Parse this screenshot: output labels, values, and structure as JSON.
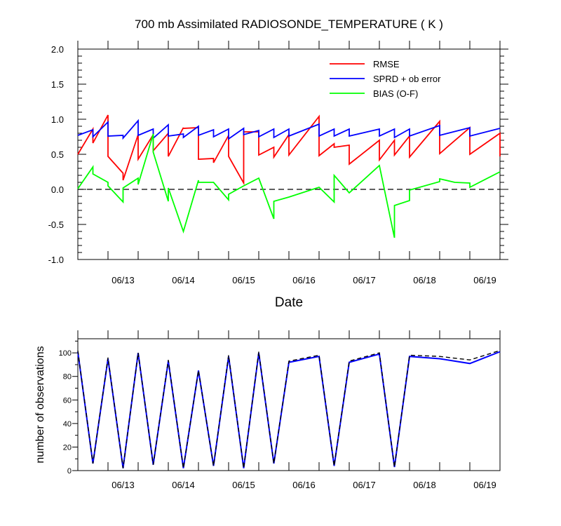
{
  "chart_data": [
    {
      "type": "line",
      "title": "700 mb Assimilated RADIOSONDE_TEMPERATURE ( K )",
      "xlabel": "Date",
      "ylabel": "",
      "ylim": [
        -1.0,
        2.0
      ],
      "yticks": [
        "-1.0",
        "-0.5",
        "0.0",
        "0.5",
        "1.0",
        "1.5",
        "2.0"
      ],
      "x_tick_labels": [
        "06/13",
        "06/14",
        "06/15",
        "06/16",
        "06/17",
        "06/18",
        "06/19"
      ],
      "zero_line": "dashed",
      "legend_position": "top-right",
      "series": [
        {
          "name": "RMSE",
          "color": "#ff0000",
          "points": [
            [
              0.0,
              0.5
            ],
            [
              0.5,
              0.86
            ],
            [
              0.5,
              0.66
            ],
            [
              1.0,
              1.06
            ],
            [
              1.0,
              0.47
            ],
            [
              1.5,
              0.23
            ],
            [
              1.5,
              0.13
            ],
            [
              2.0,
              0.78
            ],
            [
              2.0,
              0.43
            ],
            [
              2.5,
              0.78
            ],
            [
              2.5,
              0.55
            ],
            [
              3.0,
              0.8
            ],
            [
              3.0,
              0.47
            ],
            [
              3.5,
              0.88
            ],
            [
              3.5,
              0.87
            ],
            [
              4.0,
              0.88
            ],
            [
              4.0,
              0.43
            ],
            [
              4.5,
              0.44
            ],
            [
              4.5,
              0.38
            ],
            [
              5.0,
              0.77
            ],
            [
              5.0,
              0.47
            ],
            [
              5.5,
              0.09
            ],
            [
              5.5,
              0.82
            ],
            [
              6.0,
              0.82
            ],
            [
              6.0,
              0.49
            ],
            [
              6.5,
              0.6
            ],
            [
              6.5,
              0.46
            ],
            [
              7.0,
              0.78
            ],
            [
              7.0,
              0.49
            ],
            [
              8.0,
              1.04
            ],
            [
              8.0,
              0.48
            ],
            [
              8.5,
              0.65
            ],
            [
              8.5,
              0.6
            ],
            [
              9.0,
              0.63
            ],
            [
              9.0,
              0.36
            ],
            [
              10.0,
              0.7
            ],
            [
              10.0,
              0.42
            ],
            [
              10.5,
              0.7
            ],
            [
              10.5,
              0.49
            ],
            [
              11.0,
              0.76
            ],
            [
              11.0,
              0.46
            ],
            [
              12.0,
              0.97
            ],
            [
              12.0,
              0.51
            ],
            [
              13.0,
              0.88
            ],
            [
              13.0,
              0.5
            ],
            [
              14.0,
              0.8
            ],
            [
              14.0,
              0.47
            ]
          ]
        },
        {
          "name": "SPRD + ob error",
          "color": "#0000ff",
          "points": [
            [
              0.0,
              0.77
            ],
            [
              0.5,
              0.85
            ],
            [
              0.5,
              0.75
            ],
            [
              1.0,
              0.96
            ],
            [
              1.0,
              0.76
            ],
            [
              1.5,
              0.77
            ],
            [
              1.5,
              0.73
            ],
            [
              2.0,
              0.98
            ],
            [
              2.0,
              0.77
            ],
            [
              2.5,
              0.86
            ],
            [
              2.5,
              0.73
            ],
            [
              3.0,
              0.92
            ],
            [
              3.0,
              0.76
            ],
            [
              3.5,
              0.79
            ],
            [
              3.5,
              0.74
            ],
            [
              4.0,
              0.9
            ],
            [
              4.0,
              0.77
            ],
            [
              4.5,
              0.85
            ],
            [
              4.5,
              0.75
            ],
            [
              5.0,
              0.86
            ],
            [
              5.0,
              0.72
            ],
            [
              5.5,
              0.87
            ],
            [
              5.5,
              0.78
            ],
            [
              6.0,
              0.84
            ],
            [
              6.0,
              0.75
            ],
            [
              6.5,
              0.86
            ],
            [
              6.5,
              0.74
            ],
            [
              7.0,
              0.86
            ],
            [
              7.0,
              0.76
            ],
            [
              8.0,
              0.93
            ],
            [
              8.0,
              0.76
            ],
            [
              8.5,
              0.86
            ],
            [
              8.5,
              0.76
            ],
            [
              9.0,
              0.86
            ],
            [
              9.0,
              0.76
            ],
            [
              10.0,
              0.86
            ],
            [
              10.0,
              0.76
            ],
            [
              10.5,
              0.86
            ],
            [
              10.5,
              0.74
            ],
            [
              11.0,
              0.86
            ],
            [
              11.0,
              0.76
            ],
            [
              12.0,
              0.91
            ],
            [
              12.0,
              0.77
            ],
            [
              13.0,
              0.88
            ],
            [
              13.0,
              0.76
            ],
            [
              14.0,
              0.87
            ]
          ]
        },
        {
          "name": "BIAS (O-F)",
          "color": "#00ff00",
          "points": [
            [
              0.0,
              0.01
            ],
            [
              0.5,
              0.32
            ],
            [
              0.5,
              0.22
            ],
            [
              1.0,
              0.1
            ],
            [
              1.0,
              0.05
            ],
            [
              1.5,
              -0.18
            ],
            [
              1.5,
              0.02
            ],
            [
              2.0,
              0.16
            ],
            [
              2.0,
              0.07
            ],
            [
              2.5,
              0.79
            ],
            [
              2.5,
              0.53
            ],
            [
              3.0,
              -0.17
            ],
            [
              3.0,
              0.02
            ],
            [
              3.5,
              -0.6
            ],
            [
              4.0,
              0.13
            ],
            [
              4.0,
              0.1
            ],
            [
              4.5,
              0.1
            ],
            [
              5.0,
              -0.15
            ],
            [
              5.0,
              -0.07
            ],
            [
              5.5,
              0.05
            ],
            [
              6.0,
              0.16
            ],
            [
              6.5,
              -0.42
            ],
            [
              6.5,
              -0.17
            ],
            [
              7.0,
              -0.11
            ],
            [
              8.0,
              0.03
            ],
            [
              8.5,
              -0.18
            ],
            [
              8.5,
              0.2
            ],
            [
              9.0,
              -0.05
            ],
            [
              10.0,
              0.34
            ],
            [
              10.5,
              -0.69
            ],
            [
              10.5,
              -0.23
            ],
            [
              11.0,
              -0.16
            ],
            [
              11.0,
              -0.01
            ],
            [
              12.0,
              0.11
            ],
            [
              12.0,
              0.15
            ],
            [
              12.5,
              0.1
            ],
            [
              13.0,
              0.09
            ],
            [
              13.0,
              0.03
            ],
            [
              14.0,
              0.25
            ]
          ]
        }
      ]
    },
    {
      "type": "line",
      "title": "",
      "xlabel": "",
      "ylabel": "number of observations",
      "ylim": [
        0,
        112
      ],
      "yticks": [
        "0",
        "20",
        "40",
        "60",
        "80",
        "100"
      ],
      "x_tick_labels": [
        "06/13",
        "06/14",
        "06/15",
        "06/16",
        "06/17",
        "06/18",
        "06/19"
      ],
      "series": [
        {
          "name": "",
          "color": "#0000ff",
          "style": "solid",
          "points": [
            [
              0.0,
              101
            ],
            [
              0.5,
              6
            ],
            [
              1.0,
              95
            ],
            [
              1.5,
              2
            ],
            [
              2.0,
              100
            ],
            [
              2.5,
              5
            ],
            [
              3.0,
              93
            ],
            [
              3.5,
              2
            ],
            [
              4.0,
              85
            ],
            [
              4.5,
              4
            ],
            [
              5.0,
              97
            ],
            [
              5.5,
              2
            ],
            [
              6.0,
              100
            ],
            [
              6.5,
              6
            ],
            [
              7.0,
              92
            ],
            [
              8.0,
              97
            ],
            [
              8.5,
              4
            ],
            [
              9.0,
              92
            ],
            [
              10.0,
              99
            ],
            [
              10.5,
              3
            ],
            [
              11.0,
              97
            ],
            [
              12.0,
              95
            ],
            [
              13.0,
              91
            ],
            [
              14.0,
              101
            ]
          ]
        },
        {
          "name": "",
          "color": "#000000",
          "style": "dashed",
          "points": [
            [
              0.0,
              102
            ],
            [
              0.5,
              6
            ],
            [
              1.0,
              96
            ],
            [
              1.5,
              2
            ],
            [
              2.0,
              100
            ],
            [
              2.5,
              5
            ],
            [
              3.0,
              94
            ],
            [
              3.5,
              2
            ],
            [
              4.0,
              85
            ],
            [
              4.5,
              4
            ],
            [
              5.0,
              98
            ],
            [
              5.5,
              2
            ],
            [
              6.0,
              101
            ],
            [
              6.5,
              6
            ],
            [
              7.0,
              93
            ],
            [
              8.0,
              98
            ],
            [
              8.5,
              4
            ],
            [
              9.0,
              93
            ],
            [
              10.0,
              100
            ],
            [
              10.5,
              3
            ],
            [
              11.0,
              98
            ],
            [
              12.0,
              97
            ],
            [
              13.0,
              94
            ],
            [
              14.0,
              102
            ]
          ]
        }
      ]
    }
  ]
}
